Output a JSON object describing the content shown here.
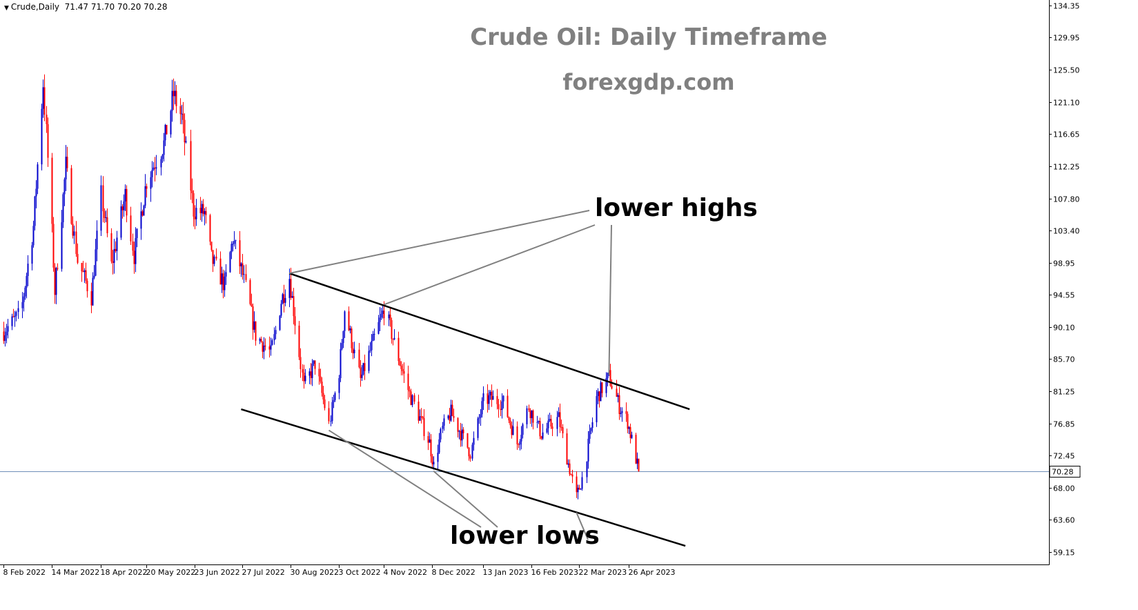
{
  "header": {
    "symbol": "Crude,Daily",
    "ohlc": "71.47 71.70 70.20 70.28",
    "menu_icon": "triangle-down-icon"
  },
  "title": "Crude Oil: Daily Timeframe",
  "subtitle": "forexgdp.com",
  "annotations": {
    "lower_highs": "lower highs",
    "lower_lows": "lower lows"
  },
  "colors": {
    "bull": "#0000cc",
    "bear": "#ff0000",
    "trendline": "#000000",
    "connector": "#808080",
    "price_line": "#6f8fb8",
    "axis": "#000000",
    "title": "#808080"
  },
  "chart_data": {
    "type": "candlestick",
    "timeframe": "Daily",
    "symbol": "Crude",
    "ylim": [
      57.0,
      135.0
    ],
    "y_ticks": [
      "134.35",
      "129.95",
      "125.50",
      "121.10",
      "116.65",
      "112.25",
      "107.80",
      "103.40",
      "98.95",
      "94.55",
      "90.10",
      "85.70",
      "81.25",
      "76.85",
      "72.45",
      "68.00",
      "63.60",
      "59.15"
    ],
    "x_ticks": [
      "8 Feb 2022",
      "14 Mar 2022",
      "18 Apr 2022",
      "20 May 2022",
      "23 Jun 2022",
      "27 Jul 2022",
      "30 Aug 2022",
      "3 Oct 2022",
      "4 Nov 2022",
      "8 Dec 2022",
      "13 Jan 2023",
      "16 Feb 2023",
      "22 Mar 2023",
      "26 Apr 2023"
    ],
    "last_price": 70.28,
    "last_price_label": "70.28",
    "close_path": [
      [
        "8 Feb 2022",
        89.5
      ],
      [
        "20 Feb 2022",
        92.0
      ],
      [
        "1 Mar 2022",
        104.0
      ],
      [
        "8 Mar 2022",
        123.7
      ],
      [
        "14 Mar 2022",
        103.0
      ],
      [
        "16 Mar 2022",
        95.0
      ],
      [
        "24 Mar 2022",
        112.3
      ],
      [
        "1 Apr 2022",
        99.3
      ],
      [
        "11 Apr 2022",
        94.3
      ],
      [
        "18 Apr 2022",
        108.2
      ],
      [
        "25 Apr 2022",
        98.5
      ],
      [
        "5 May 2022",
        108.3
      ],
      [
        "11 May 2022",
        100.0
      ],
      [
        "20 May 2022",
        110.3
      ],
      [
        "1 Jun 2022",
        115.3
      ],
      [
        "8 Jun 2022",
        122.1
      ],
      [
        "14 Jun 2022",
        118.9
      ],
      [
        "22 Jun 2022",
        106.2
      ],
      [
        "30 Jun 2022",
        105.8
      ],
      [
        "5 Jul 2022",
        99.5
      ],
      [
        "14 Jul 2022",
        95.8
      ],
      [
        "20 Jul 2022",
        102.3
      ],
      [
        "27 Jul 2022",
        97.3
      ],
      [
        "5 Aug 2022",
        89.0
      ],
      [
        "16 Aug 2022",
        86.5
      ],
      [
        "23 Aug 2022",
        93.7
      ],
      [
        "29 Aug 2022",
        97.0
      ],
      [
        "8 Sep 2022",
        81.9
      ],
      [
        "16 Sep 2022",
        85.1
      ],
      [
        "26 Sep 2022",
        76.7
      ],
      [
        "3 Oct 2022",
        84.0
      ],
      [
        "7 Oct 2022",
        92.6
      ],
      [
        "18 Oct 2022",
        82.8
      ],
      [
        "4 Nov 2022",
        92.6
      ],
      [
        "14 Nov 2022",
        85.9
      ],
      [
        "22 Nov 2022",
        80.9
      ],
      [
        "6 Dec 2022",
        74.2
      ],
      [
        "9 Dec 2022",
        71.0
      ],
      [
        "15 Dec 2022",
        76.1
      ],
      [
        "21 Dec 2022",
        78.3
      ],
      [
        "4 Jan 2023",
        72.8
      ],
      [
        "13 Jan 2023",
        79.9
      ],
      [
        "18 Jan 2023",
        80.3
      ],
      [
        "27 Jan 2023",
        79.7
      ],
      [
        "6 Feb 2023",
        74.1
      ],
      [
        "14 Feb 2023",
        79.1
      ],
      [
        "23 Feb 2023",
        75.4
      ],
      [
        "7 Mar 2023",
        77.6
      ],
      [
        "14 Mar 2023",
        71.3
      ],
      [
        "20 Mar 2023",
        66.7
      ],
      [
        "24 Mar 2023",
        69.3
      ],
      [
        "3 Apr 2023",
        80.4
      ],
      [
        "12 Apr 2023",
        83.3
      ],
      [
        "19 Apr 2023",
        79.2
      ],
      [
        "25 Apr 2023",
        77.1
      ],
      [
        "3 May 2023",
        70.3
      ]
    ],
    "trendlines": [
      {
        "name": "upper channel",
        "start": [
          "29 Aug 2022",
          97.5
        ],
        "end": [
          "8 Jun 2023",
          78.8
        ]
      },
      {
        "name": "lower channel",
        "start": [
          "26 Jul 2022",
          78.8
        ],
        "end": [
          "5 Jun 2023",
          60.0
        ]
      }
    ],
    "swing_points": {
      "lower_highs": [
        [
          "29 Aug 2022",
          97.5
        ],
        [
          "4 Nov 2022",
          93.2
        ],
        [
          "12 Apr 2023",
          83.5
        ]
      ],
      "lower_lows": [
        [
          "26 Sep 2022",
          75.9
        ],
        [
          "9 Dec 2022",
          70.3
        ],
        [
          "20 Mar 2023",
          64.6
        ]
      ]
    }
  }
}
